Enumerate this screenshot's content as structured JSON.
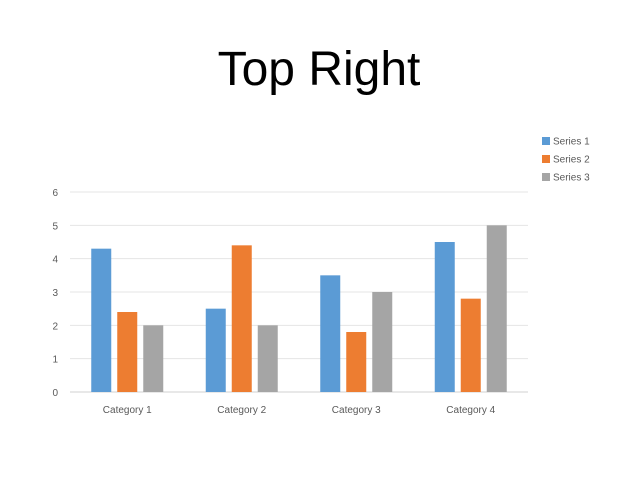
{
  "slide": {
    "title": "Top Right"
  },
  "chart_data": {
    "type": "bar",
    "title": "",
    "xlabel": "",
    "ylabel": "",
    "categories": [
      "Category 1",
      "Category 2",
      "Category 3",
      "Category 4"
    ],
    "series": [
      {
        "name": "Series 1",
        "values": [
          4.3,
          2.5,
          3.5,
          4.5
        ],
        "color": "#5B9BD5"
      },
      {
        "name": "Series 2",
        "values": [
          2.4,
          4.4,
          1.8,
          2.8
        ],
        "color": "#ED7D31"
      },
      {
        "name": "Series 3",
        "values": [
          2,
          2,
          3,
          5
        ],
        "color": "#A5A5A5"
      }
    ],
    "ylim": [
      0,
      6
    ],
    "yticks": [
      0,
      1,
      2,
      3,
      4,
      5,
      6
    ],
    "grid": true,
    "legend": "top-right"
  }
}
